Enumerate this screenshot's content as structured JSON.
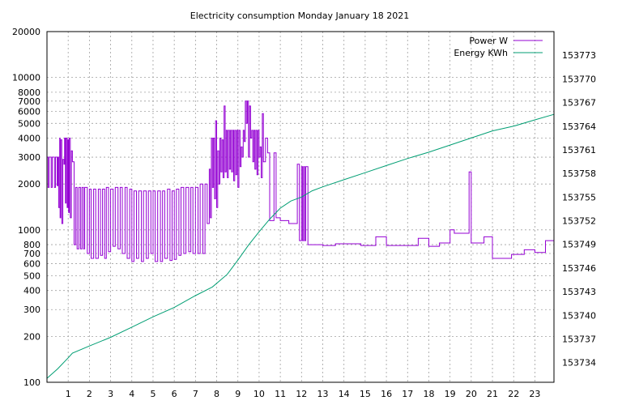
{
  "chart_data": {
    "type": "line",
    "title": "Electricity consumption Monday January 18 2021",
    "x_ticks": [
      1,
      2,
      3,
      4,
      5,
      6,
      7,
      8,
      9,
      10,
      11,
      12,
      13,
      14,
      15,
      16,
      17,
      18,
      19,
      20,
      21,
      22,
      23
    ],
    "xlim": [
      0,
      23.9
    ],
    "y_left": {
      "scale": "log",
      "ylim": [
        100,
        20000
      ],
      "ticks": [
        100,
        200,
        300,
        400,
        500,
        600,
        700,
        800,
        1000,
        2000,
        3000,
        4000,
        5000,
        6000,
        7000,
        8000,
        10000,
        20000
      ]
    },
    "y_right": {
      "ylim": [
        153731.5,
        153776
      ],
      "ticks": [
        153734,
        153737,
        153740,
        153743,
        153746,
        153749,
        153752,
        153755,
        153758,
        153761,
        153764,
        153767,
        153770,
        153773
      ]
    },
    "grid": true,
    "legend_position": "top-right",
    "series": [
      {
        "name": "Power W",
        "axis": "left",
        "color": "#9400d3",
        "style": "step",
        "points": [
          [
            0.0,
            3000
          ],
          [
            0.05,
            1900
          ],
          [
            0.1,
            3000
          ],
          [
            0.2,
            1900
          ],
          [
            0.25,
            3000
          ],
          [
            0.35,
            1900
          ],
          [
            0.4,
            3000
          ],
          [
            0.48,
            1950
          ],
          [
            0.52,
            3000
          ],
          [
            0.55,
            1400
          ],
          [
            0.6,
            4000
          ],
          [
            0.62,
            1200
          ],
          [
            0.65,
            3900
          ],
          [
            0.7,
            1100
          ],
          [
            0.75,
            2900
          ],
          [
            0.8,
            2700
          ],
          [
            0.83,
            4000
          ],
          [
            0.87,
            1500
          ],
          [
            0.9,
            4000
          ],
          [
            0.95,
            1400
          ],
          [
            0.98,
            3900
          ],
          [
            1.02,
            1300
          ],
          [
            1.05,
            4000
          ],
          [
            1.1,
            1200
          ],
          [
            1.15,
            3300
          ],
          [
            1.2,
            2800
          ],
          [
            1.28,
            800
          ],
          [
            1.35,
            1900
          ],
          [
            1.42,
            750
          ],
          [
            1.5,
            1900
          ],
          [
            1.58,
            750
          ],
          [
            1.65,
            1900
          ],
          [
            1.72,
            750
          ],
          [
            1.78,
            1900
          ],
          [
            1.9,
            700
          ],
          [
            2.0,
            1850
          ],
          [
            2.08,
            650
          ],
          [
            2.2,
            1850
          ],
          [
            2.3,
            650
          ],
          [
            2.42,
            1850
          ],
          [
            2.52,
            680
          ],
          [
            2.62,
            1850
          ],
          [
            2.72,
            650
          ],
          [
            2.8,
            1900
          ],
          [
            2.9,
            720
          ],
          [
            3.0,
            1850
          ],
          [
            3.12,
            780
          ],
          [
            3.22,
            1900
          ],
          [
            3.35,
            750
          ],
          [
            3.45,
            1900
          ],
          [
            3.55,
            700
          ],
          [
            3.68,
            1900
          ],
          [
            3.78,
            650
          ],
          [
            3.9,
            1850
          ],
          [
            4.0,
            620
          ],
          [
            4.1,
            1800
          ],
          [
            4.22,
            650
          ],
          [
            4.32,
            1800
          ],
          [
            4.45,
            620
          ],
          [
            4.55,
            1800
          ],
          [
            4.68,
            650
          ],
          [
            4.78,
            1800
          ],
          [
            4.9,
            700
          ],
          [
            5.0,
            1800
          ],
          [
            5.1,
            620
          ],
          [
            5.22,
            1800
          ],
          [
            5.35,
            620
          ],
          [
            5.45,
            1800
          ],
          [
            5.55,
            650
          ],
          [
            5.68,
            1850
          ],
          [
            5.8,
            630
          ],
          [
            5.9,
            1800
          ],
          [
            6.0,
            640
          ],
          [
            6.1,
            1850
          ],
          [
            6.22,
            680
          ],
          [
            6.32,
            1900
          ],
          [
            6.45,
            700
          ],
          [
            6.55,
            1900
          ],
          [
            6.68,
            720
          ],
          [
            6.78,
            1900
          ],
          [
            6.88,
            700
          ],
          [
            7.0,
            1900
          ],
          [
            7.12,
            700
          ],
          [
            7.22,
            2000
          ],
          [
            7.35,
            700
          ],
          [
            7.45,
            2000
          ],
          [
            7.55,
            1100
          ],
          [
            7.65,
            2500
          ],
          [
            7.7,
            1200
          ],
          [
            7.75,
            4000
          ],
          [
            7.8,
            1900
          ],
          [
            7.85,
            4000
          ],
          [
            7.9,
            1600
          ],
          [
            7.95,
            5200
          ],
          [
            8.0,
            1400
          ],
          [
            8.05,
            3300
          ],
          [
            8.1,
            2000
          ],
          [
            8.15,
            4000
          ],
          [
            8.2,
            2400
          ],
          [
            8.25,
            3900
          ],
          [
            8.3,
            2200
          ],
          [
            8.35,
            6500
          ],
          [
            8.4,
            2400
          ],
          [
            8.45,
            4500
          ],
          [
            8.5,
            2200
          ],
          [
            8.55,
            4500
          ],
          [
            8.6,
            2500
          ],
          [
            8.65,
            4500
          ],
          [
            8.7,
            2400
          ],
          [
            8.75,
            4500
          ],
          [
            8.8,
            2100
          ],
          [
            8.85,
            4500
          ],
          [
            8.9,
            2300
          ],
          [
            8.95,
            4500
          ],
          [
            9.0,
            1900
          ],
          [
            9.05,
            4500
          ],
          [
            9.1,
            2600
          ],
          [
            9.15,
            3500
          ],
          [
            9.2,
            3000
          ],
          [
            9.25,
            4500
          ],
          [
            9.3,
            3800
          ],
          [
            9.35,
            7000
          ],
          [
            9.4,
            5000
          ],
          [
            9.45,
            7000
          ],
          [
            9.5,
            3000
          ],
          [
            9.55,
            6500
          ],
          [
            9.6,
            4000
          ],
          [
            9.65,
            4500
          ],
          [
            9.7,
            2800
          ],
          [
            9.75,
            4500
          ],
          [
            9.8,
            2500
          ],
          [
            9.85,
            4500
          ],
          [
            9.9,
            2300
          ],
          [
            9.95,
            4500
          ],
          [
            10.0,
            3000
          ],
          [
            10.05,
            3500
          ],
          [
            10.1,
            2200
          ],
          [
            10.15,
            5800
          ],
          [
            10.2,
            2800
          ],
          [
            10.3,
            4000
          ],
          [
            10.4,
            3200
          ],
          [
            10.5,
            1150
          ],
          [
            10.7,
            3200
          ],
          [
            10.8,
            1200
          ],
          [
            11.0,
            1150
          ],
          [
            11.2,
            1150
          ],
          [
            11.4,
            1100
          ],
          [
            11.8,
            2700
          ],
          [
            11.9,
            850
          ],
          [
            12.0,
            2600
          ],
          [
            12.05,
            850
          ],
          [
            12.1,
            2600
          ],
          [
            12.15,
            850
          ],
          [
            12.2,
            2600
          ],
          [
            12.3,
            800
          ],
          [
            13.0,
            790
          ],
          [
            13.6,
            810
          ],
          [
            14.8,
            790
          ],
          [
            15.5,
            900
          ],
          [
            16.0,
            790
          ],
          [
            17.2,
            790
          ],
          [
            17.5,
            880
          ],
          [
            18.0,
            780
          ],
          [
            18.5,
            820
          ],
          [
            19.0,
            1000
          ],
          [
            19.2,
            950
          ],
          [
            19.6,
            950
          ],
          [
            19.9,
            2400
          ],
          [
            20.0,
            820
          ],
          [
            20.6,
            900
          ],
          [
            21.0,
            650
          ],
          [
            21.9,
            690
          ],
          [
            22.5,
            740
          ],
          [
            23.0,
            710
          ],
          [
            23.5,
            850
          ],
          [
            23.9,
            820
          ]
        ]
      },
      {
        "name": "Energy KWh",
        "axis": "right",
        "color": "#009e73",
        "style": "line",
        "points": [
          [
            0.0,
            153732.0
          ],
          [
            0.5,
            153733.2
          ],
          [
            1.0,
            153734.6
          ],
          [
            1.2,
            153735.2
          ],
          [
            2.0,
            153736.1
          ],
          [
            3.0,
            153737.2
          ],
          [
            4.0,
            153738.5
          ],
          [
            5.0,
            153739.8
          ],
          [
            6.0,
            153741.0
          ],
          [
            7.0,
            153742.5
          ],
          [
            7.8,
            153743.6
          ],
          [
            8.5,
            153745.2
          ],
          [
            9.0,
            153747.0
          ],
          [
            9.5,
            153748.9
          ],
          [
            10.0,
            153750.6
          ],
          [
            10.5,
            153752.2
          ],
          [
            11.0,
            153753.6
          ],
          [
            11.5,
            153754.5
          ],
          [
            12.0,
            153755.0
          ],
          [
            12.5,
            153755.8
          ],
          [
            13.0,
            153756.3
          ],
          [
            14.0,
            153757.2
          ],
          [
            15.0,
            153758.1
          ],
          [
            16.0,
            153759.0
          ],
          [
            17.0,
            153759.9
          ],
          [
            18.0,
            153760.7
          ],
          [
            19.0,
            153761.6
          ],
          [
            20.0,
            153762.5
          ],
          [
            21.0,
            153763.4
          ],
          [
            22.0,
            153764.0
          ],
          [
            23.0,
            153764.8
          ],
          [
            23.9,
            153765.5
          ]
        ]
      }
    ]
  }
}
